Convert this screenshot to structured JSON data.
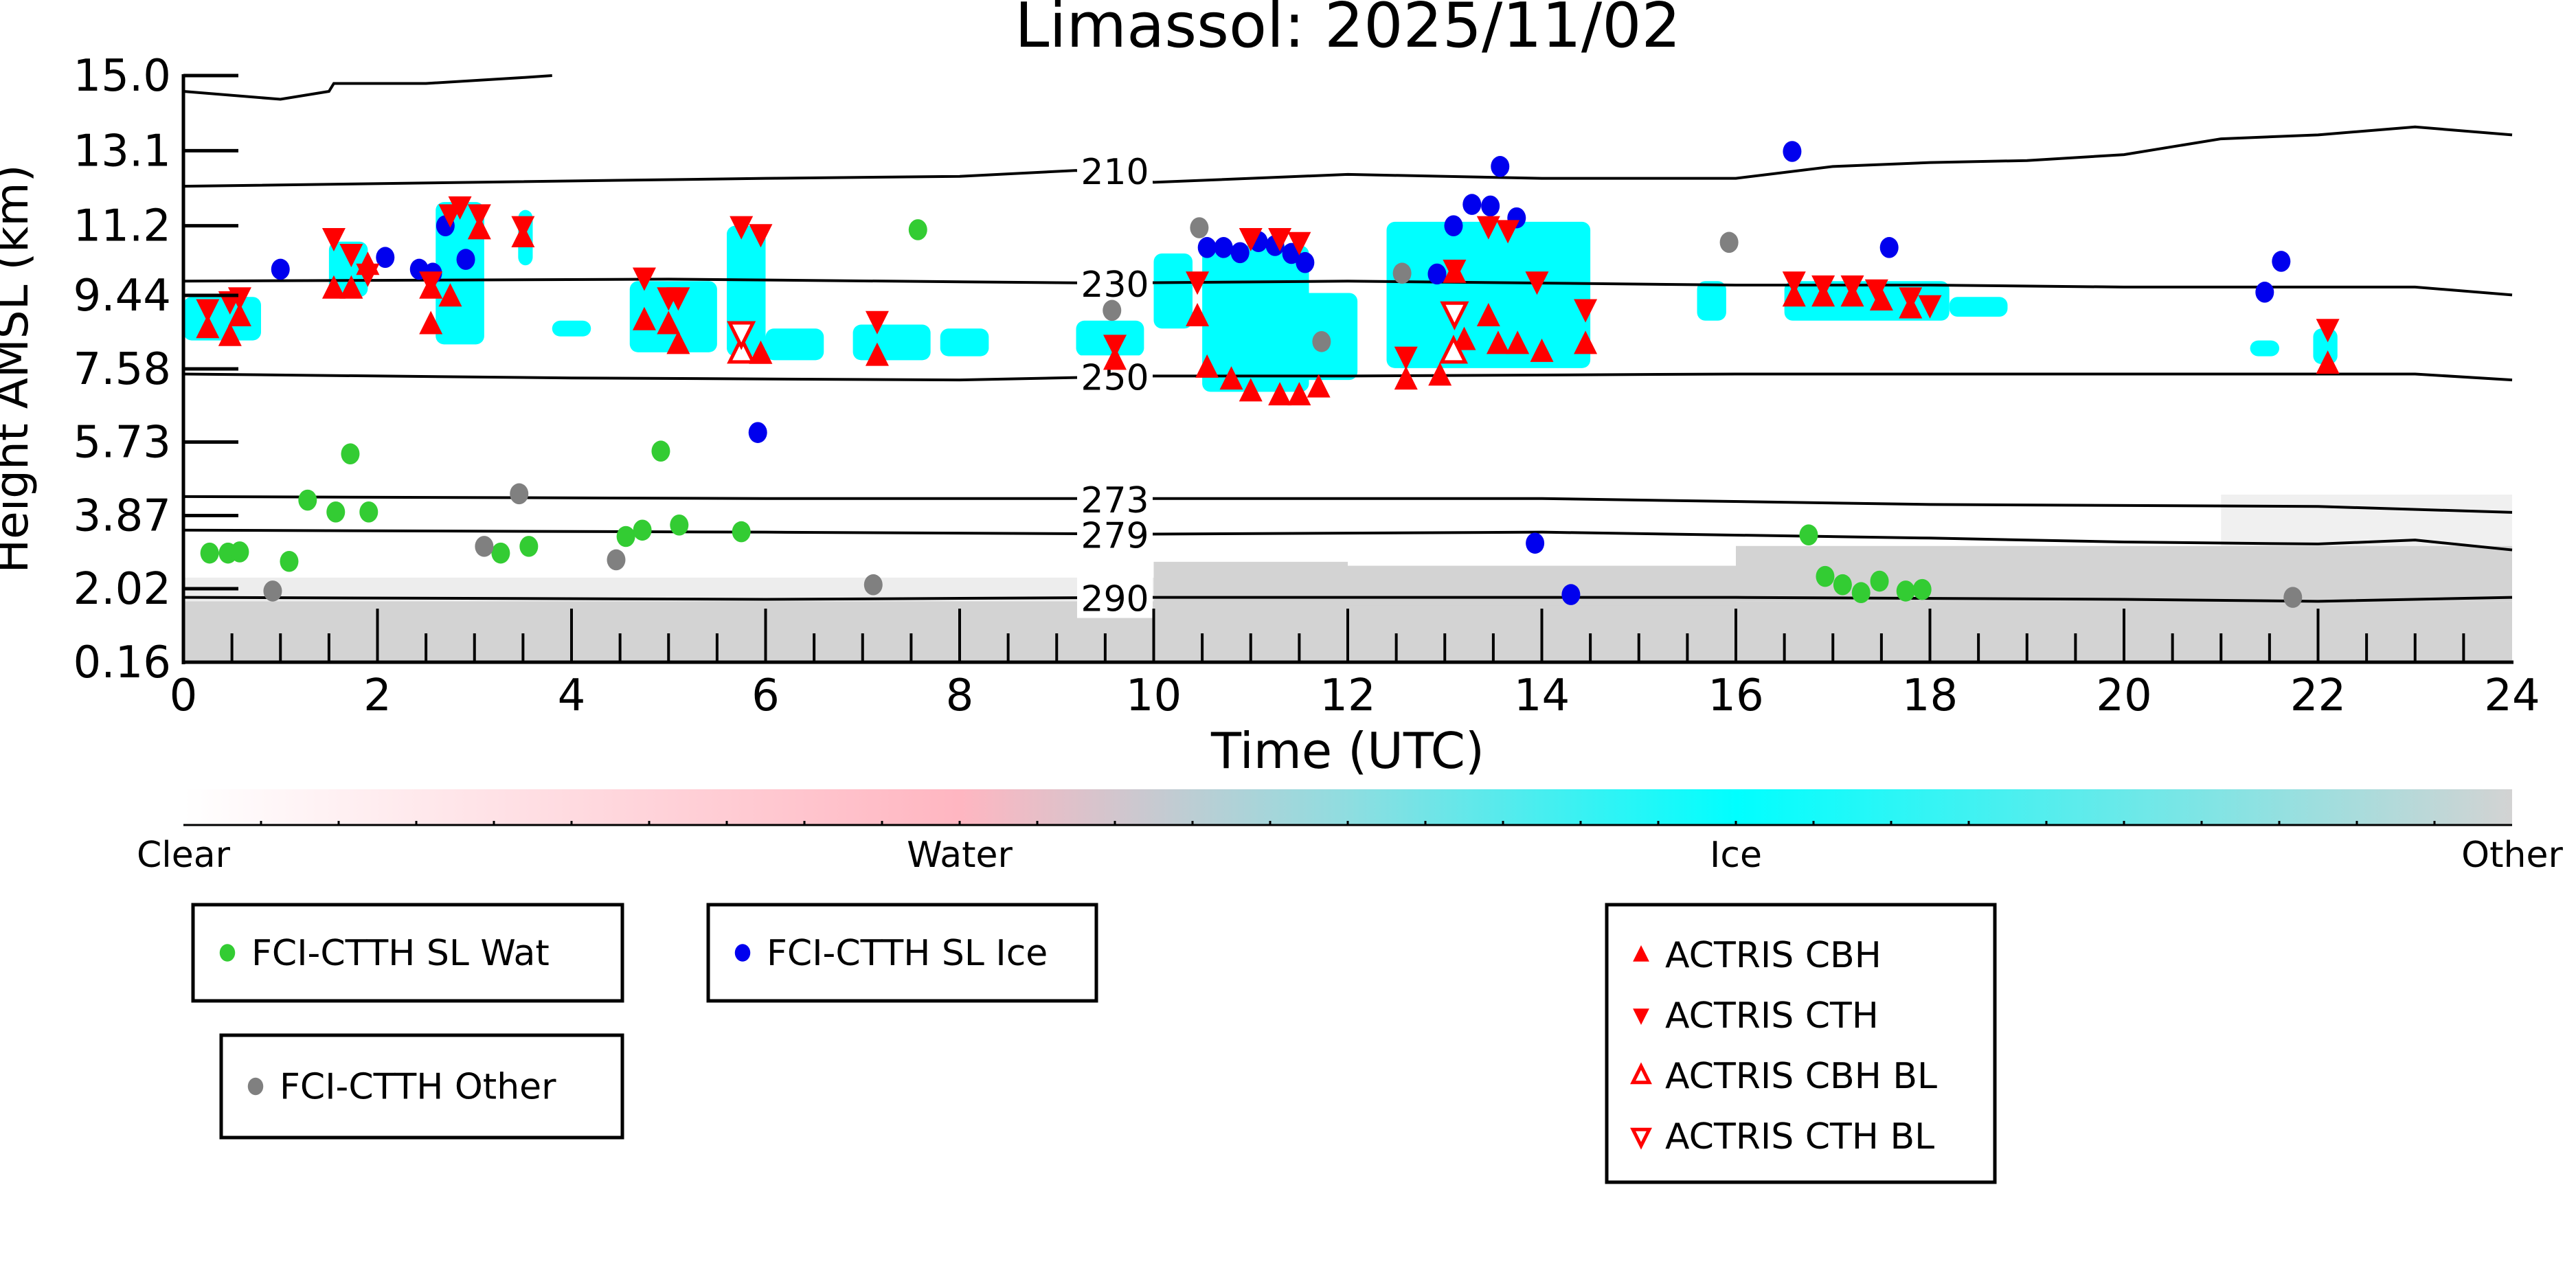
{
  "chart_data": {
    "type": "scatter",
    "title": "Limassol: 2025/11/02",
    "xlabel": "Time (UTC)",
    "ylabel": "Height AMSL (km)",
    "xlim": [
      0,
      24
    ],
    "ylim": [
      0.16,
      15.0
    ],
    "xticks": [
      "0",
      "2",
      "4",
      "6",
      "8",
      "10",
      "12",
      "14",
      "16",
      "18",
      "20",
      "22",
      "24"
    ],
    "yticks": [
      "0.16",
      "2.02",
      "3.87",
      "5.73",
      "7.58",
      "9.44",
      "11.2",
      "13.1",
      "15.0"
    ],
    "colorbar": {
      "labels": [
        "Clear",
        "Water",
        "Ice",
        "Other"
      ],
      "colors": [
        "#ffffff",
        "#ffb6c1",
        "#00ffff",
        "#d3d3d3"
      ]
    },
    "contours": [
      {
        "label": "",
        "points": [
          [
            0,
            14.6
          ],
          [
            1.0,
            14.4
          ],
          [
            1.5,
            14.6
          ],
          [
            1.55,
            14.8
          ],
          [
            2.5,
            14.8
          ],
          [
            3.5,
            14.95
          ],
          [
            3.8,
            15.0
          ]
        ]
      },
      {
        "label": "210",
        "points": [
          [
            0,
            12.2
          ],
          [
            3,
            12.3
          ],
          [
            6,
            12.4
          ],
          [
            8,
            12.45
          ],
          [
            9.2,
            12.6
          ],
          [
            10,
            12.3
          ],
          [
            12,
            12.5
          ],
          [
            14,
            12.4
          ],
          [
            16,
            12.4
          ],
          [
            17,
            12.7
          ],
          [
            18,
            12.8
          ],
          [
            19,
            12.85
          ],
          [
            20,
            13.0
          ],
          [
            21,
            13.4
          ],
          [
            22,
            13.5
          ],
          [
            23,
            13.7
          ],
          [
            24,
            13.5
          ]
        ]
      },
      {
        "label": "230",
        "points": [
          [
            0,
            9.8
          ],
          [
            5,
            9.85
          ],
          [
            9.5,
            9.75
          ],
          [
            12,
            9.8
          ],
          [
            16,
            9.7
          ],
          [
            18,
            9.7
          ],
          [
            20,
            9.65
          ],
          [
            23,
            9.65
          ],
          [
            24,
            9.45
          ]
        ]
      },
      {
        "label": "250",
        "points": [
          [
            0,
            7.45
          ],
          [
            4,
            7.35
          ],
          [
            8,
            7.3
          ],
          [
            10,
            7.4
          ],
          [
            12,
            7.4
          ],
          [
            16,
            7.45
          ],
          [
            20,
            7.45
          ],
          [
            23,
            7.45
          ],
          [
            24,
            7.3
          ]
        ]
      },
      {
        "label": "273",
        "points": [
          [
            0,
            4.35
          ],
          [
            6,
            4.3
          ],
          [
            10,
            4.3
          ],
          [
            14,
            4.3
          ],
          [
            18,
            4.15
          ],
          [
            22,
            4.1
          ],
          [
            24,
            3.95
          ]
        ]
      },
      {
        "label": "279",
        "points": [
          [
            0,
            3.5
          ],
          [
            6,
            3.45
          ],
          [
            10,
            3.4
          ],
          [
            14,
            3.45
          ],
          [
            18,
            3.3
          ],
          [
            20,
            3.2
          ],
          [
            22,
            3.15
          ],
          [
            23,
            3.25
          ],
          [
            24,
            3.0
          ]
        ]
      },
      {
        "label": "290",
        "points": [
          [
            0,
            1.8
          ],
          [
            6,
            1.75
          ],
          [
            10,
            1.8
          ],
          [
            16,
            1.8
          ],
          [
            20,
            1.75
          ],
          [
            22,
            1.7
          ],
          [
            24,
            1.8
          ]
        ]
      }
    ],
    "ice_regions": [
      [
        0,
        0.8,
        8.3,
        9.4
      ],
      [
        1.5,
        1.9,
        9.4,
        10.8
      ],
      [
        2.6,
        3.1,
        8.2,
        11.8
      ],
      [
        3.45,
        3.6,
        10.2,
        11.6
      ],
      [
        3.8,
        4.2,
        8.4,
        8.8
      ],
      [
        4.6,
        5.5,
        8.0,
        9.8
      ],
      [
        5.6,
        6.0,
        7.9,
        11.2
      ],
      [
        6.0,
        6.6,
        7.8,
        8.6
      ],
      [
        6.9,
        7.7,
        7.8,
        8.7
      ],
      [
        7.8,
        8.3,
        7.9,
        8.6
      ],
      [
        9.2,
        9.9,
        7.9,
        8.8
      ],
      [
        10.0,
        10.4,
        8.6,
        10.5
      ],
      [
        10.5,
        11.6,
        7.0,
        10.7
      ],
      [
        11.4,
        12.1,
        7.3,
        9.5
      ],
      [
        12.4,
        14.5,
        7.6,
        11.3
      ],
      [
        15.6,
        15.9,
        8.8,
        9.8
      ],
      [
        16.5,
        18.2,
        8.8,
        9.8
      ],
      [
        18.2,
        18.8,
        8.9,
        9.4
      ],
      [
        21.3,
        21.6,
        7.9,
        8.3
      ],
      [
        21.95,
        22.2,
        7.7,
        8.6
      ]
    ],
    "other_regions": [
      [
        0,
        24,
        0.16,
        1.7
      ],
      [
        0,
        10,
        1.7,
        2.3
      ],
      [
        10,
        12,
        1.5,
        2.7
      ],
      [
        12,
        16,
        1.6,
        2.6
      ],
      [
        16,
        24,
        1.7,
        3.1
      ],
      [
        21,
        24,
        3.1,
        4.4
      ]
    ],
    "series": [
      {
        "name": "FCI-CTTH SL Wat",
        "color": "#33cc33",
        "marker": "circle",
        "points": [
          [
            0.27,
            2.92
          ],
          [
            0.46,
            2.92
          ],
          [
            0.58,
            2.95
          ],
          [
            1.09,
            2.71
          ],
          [
            1.28,
            4.26
          ],
          [
            1.57,
            3.96
          ],
          [
            1.72,
            5.43
          ],
          [
            1.91,
            3.96
          ],
          [
            3.27,
            2.92
          ],
          [
            3.56,
            3.09
          ],
          [
            4.56,
            3.34
          ],
          [
            4.73,
            3.5
          ],
          [
            4.92,
            5.5
          ],
          [
            5.11,
            3.63
          ],
          [
            5.75,
            3.46
          ],
          [
            7.57,
            11.1
          ],
          [
            16.75,
            3.38
          ],
          [
            16.92,
            2.33
          ],
          [
            17.1,
            2.12
          ],
          [
            17.29,
            1.92
          ],
          [
            17.48,
            2.21
          ],
          [
            17.75,
            1.96
          ],
          [
            17.92,
            2.0
          ]
        ]
      },
      {
        "name": "FCI-CTTH SL Ice",
        "color": "#0000ee",
        "marker": "circle",
        "points": [
          [
            1.0,
            10.1
          ],
          [
            2.08,
            10.4
          ],
          [
            2.43,
            10.1
          ],
          [
            2.57,
            10.0
          ],
          [
            2.7,
            11.2
          ],
          [
            2.91,
            10.35
          ],
          [
            5.92,
            5.97
          ],
          [
            10.55,
            10.65
          ],
          [
            10.72,
            10.65
          ],
          [
            10.89,
            10.52
          ],
          [
            11.08,
            10.8
          ],
          [
            11.25,
            10.7
          ],
          [
            11.42,
            10.5
          ],
          [
            11.56,
            10.27
          ],
          [
            12.92,
            9.98
          ],
          [
            13.09,
            11.2
          ],
          [
            13.28,
            11.74
          ],
          [
            13.47,
            11.7
          ],
          [
            13.57,
            12.7
          ],
          [
            13.74,
            11.4
          ],
          [
            13.93,
            3.17
          ],
          [
            14.3,
            1.87
          ],
          [
            16.58,
            13.08
          ],
          [
            17.58,
            10.65
          ],
          [
            21.45,
            9.52
          ],
          [
            21.62,
            10.3
          ]
        ]
      },
      {
        "name": "FCI-CTTH Other",
        "color": "#808080",
        "marker": "circle",
        "points": [
          [
            0.92,
            1.96
          ],
          [
            3.1,
            3.09
          ],
          [
            3.46,
            4.42
          ],
          [
            4.46,
            2.75
          ],
          [
            7.11,
            2.12
          ],
          [
            9.57,
            9.06
          ],
          [
            10.47,
            11.15
          ],
          [
            11.73,
            8.27
          ],
          [
            12.56,
            10.0
          ],
          [
            15.93,
            10.78
          ],
          [
            21.74,
            1.8
          ]
        ]
      },
      {
        "name": "ACTRIS CBH",
        "color": "#ff0000",
        "marker": "triangle-up",
        "points": [
          [
            0.25,
            8.6
          ],
          [
            0.48,
            8.4
          ],
          [
            0.58,
            8.9
          ],
          [
            1.55,
            9.6
          ],
          [
            1.73,
            9.6
          ],
          [
            1.9,
            10.2
          ],
          [
            2.55,
            9.6
          ],
          [
            2.55,
            8.7
          ],
          [
            2.75,
            9.4
          ],
          [
            3.05,
            11.1
          ],
          [
            3.5,
            10.9
          ],
          [
            4.75,
            8.8
          ],
          [
            5.0,
            8.7
          ],
          [
            5.1,
            8.2
          ],
          [
            5.95,
            7.95
          ],
          [
            7.15,
            7.9
          ],
          [
            9.6,
            7.8
          ],
          [
            10.45,
            8.9
          ],
          [
            10.55,
            7.6
          ],
          [
            10.8,
            7.3
          ],
          [
            11.0,
            7.0
          ],
          [
            11.3,
            6.9
          ],
          [
            11.5,
            6.9
          ],
          [
            11.7,
            7.1
          ],
          [
            12.6,
            7.3
          ],
          [
            12.95,
            7.4
          ],
          [
            13.1,
            10.0
          ],
          [
            13.2,
            8.3
          ],
          [
            13.45,
            8.9
          ],
          [
            13.55,
            8.2
          ],
          [
            13.75,
            8.2
          ],
          [
            14.0,
            8.0
          ],
          [
            14.45,
            8.2
          ],
          [
            16.6,
            9.4
          ],
          [
            16.9,
            9.4
          ],
          [
            17.2,
            9.4
          ],
          [
            17.5,
            9.3
          ],
          [
            17.8,
            9.1
          ],
          [
            22.1,
            7.7
          ]
        ]
      },
      {
        "name": "ACTRIS CTH",
        "color": "#ff0000",
        "marker": "triangle-down",
        "points": [
          [
            0.25,
            9.1
          ],
          [
            0.48,
            9.3
          ],
          [
            0.58,
            9.4
          ],
          [
            1.55,
            10.9
          ],
          [
            1.73,
            10.5
          ],
          [
            1.9,
            10.0
          ],
          [
            2.55,
            9.8
          ],
          [
            2.75,
            11.5
          ],
          [
            2.85,
            11.7
          ],
          [
            3.05,
            11.5
          ],
          [
            3.5,
            11.2
          ],
          [
            4.75,
            9.9
          ],
          [
            5.0,
            9.4
          ],
          [
            5.1,
            9.4
          ],
          [
            5.75,
            11.2
          ],
          [
            5.95,
            11.0
          ],
          [
            7.15,
            8.8
          ],
          [
            9.6,
            8.2
          ],
          [
            10.45,
            9.8
          ],
          [
            11.0,
            10.9
          ],
          [
            11.3,
            10.9
          ],
          [
            11.5,
            10.8
          ],
          [
            12.6,
            7.9
          ],
          [
            13.1,
            10.1
          ],
          [
            13.45,
            11.2
          ],
          [
            13.65,
            11.1
          ],
          [
            13.95,
            9.8
          ],
          [
            14.45,
            9.1
          ],
          [
            16.6,
            9.8
          ],
          [
            16.9,
            9.7
          ],
          [
            17.2,
            9.7
          ],
          [
            17.45,
            9.6
          ],
          [
            17.8,
            9.4
          ],
          [
            18.0,
            9.2
          ],
          [
            22.1,
            8.6
          ]
        ]
      },
      {
        "name": "ACTRIS CBH BL",
        "color": "#ff0000",
        "marker": "triangle-up-open",
        "points": [
          [
            5.75,
            8.0
          ],
          [
            13.09,
            8.0
          ]
        ]
      },
      {
        "name": "ACTRIS CTH BL",
        "color": "#ff0000",
        "marker": "triangle-down-open",
        "points": [
          [
            5.75,
            8.5
          ],
          [
            13.1,
            9.0
          ]
        ]
      }
    ]
  }
}
